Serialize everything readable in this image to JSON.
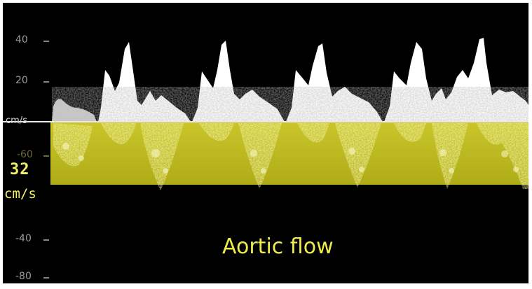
{
  "scale": {
    "labels": [
      "40",
      "20",
      "cm/s",
      "-60",
      "-40",
      "-80"
    ]
  },
  "highlight": {
    "value": "32",
    "unit": "cm/s"
  },
  "caption": "Aortic flow",
  "colors": {
    "background": "#000000",
    "forward_flow": "#ffffff",
    "highlight_band": "#b9b51c",
    "highlight_text": "#f2ef6a",
    "caption": "#f0ec4c",
    "scale_text": "#9a9a9a"
  }
}
